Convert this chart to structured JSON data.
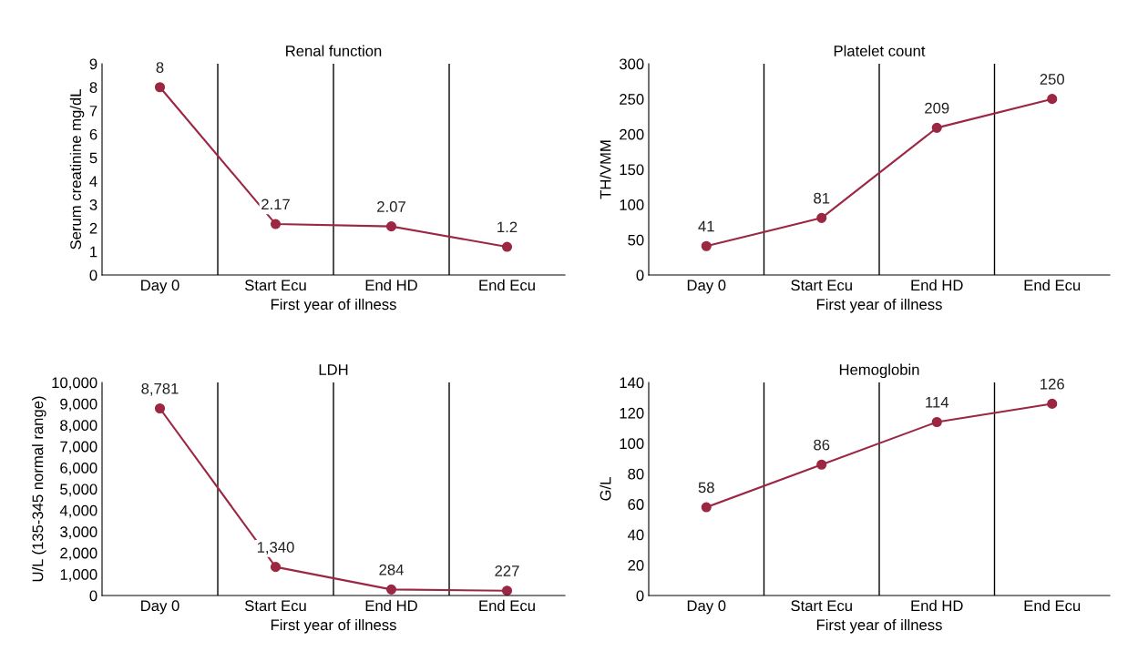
{
  "chart_data": [
    {
      "type": "line",
      "title": "Renal function",
      "xlabel": "First year of illness",
      "ylabel": "Serum creatinine mg/dL",
      "categories": [
        "Day 0",
        "Start Ecu",
        "End HD",
        "End Ecu"
      ],
      "series": [
        {
          "color": "#9b2743",
          "values": [
            8,
            2.17,
            2.07,
            1.2
          ]
        }
      ],
      "ylim": [
        0,
        9
      ],
      "yticks": [
        0,
        1,
        2,
        3,
        4,
        5,
        6,
        7,
        8,
        9
      ],
      "data_labels": true,
      "marker": "circle",
      "grid": "x"
    },
    {
      "type": "line",
      "title": "Platelet count",
      "xlabel": "First year of illness",
      "ylabel": "TH/VMM",
      "categories": [
        "Day 0",
        "Start Ecu",
        "End HD",
        "End Ecu"
      ],
      "series": [
        {
          "color": "#9b2743",
          "values": [
            41,
            81,
            209,
            250
          ]
        }
      ],
      "ylim": [
        0,
        300
      ],
      "yticks": [
        0,
        50,
        100,
        150,
        200,
        250,
        300
      ],
      "data_labels": true,
      "marker": "circle",
      "grid": "x"
    },
    {
      "type": "line",
      "title": "LDH",
      "xlabel": "First year of illness",
      "ylabel": "U/L (135-345 normal range)",
      "categories": [
        "Day 0",
        "Start Ecu",
        "End HD",
        "End Ecu"
      ],
      "series": [
        {
          "color": "#9b2743",
          "values": [
            8781,
            1340,
            284,
            227
          ],
          "value_labels": [
            "8,781",
            "1,340",
            "284",
            "227"
          ]
        }
      ],
      "ylim": [
        0,
        10000
      ],
      "yticks": [
        0,
        {
          "value": 1000,
          "label": "1,000"
        },
        {
          "value": 2000,
          "label": "2,000"
        },
        {
          "value": 3000,
          "label": "3,000"
        },
        {
          "value": 4000,
          "label": "4,000"
        },
        {
          "value": 5000,
          "label": "5,000"
        },
        {
          "value": 6000,
          "label": "6,000"
        },
        {
          "value": 7000,
          "label": "7,000"
        },
        {
          "value": 8000,
          "label": "8,000"
        },
        {
          "value": 9000,
          "label": "9,000"
        },
        {
          "value": 10000,
          "label": "10,000"
        }
      ],
      "marker": "circle",
      "grid": "x"
    },
    {
      "type": "line",
      "title": "Hemoglobin",
      "xlabel": "First year of illness",
      "ylabel": "G/L",
      "categories": [
        "Day 0",
        "Start Ecu",
        "End HD",
        "End Ecu"
      ],
      "series": [
        {
          "color": "#9b2743",
          "values": [
            58,
            86,
            114,
            126
          ]
        }
      ],
      "ylim": [
        0,
        140
      ],
      "yticks": [
        0,
        20,
        40,
        60,
        80,
        100,
        120,
        140
      ],
      "data_labels": true,
      "marker": "circle",
      "grid": "x"
    }
  ]
}
